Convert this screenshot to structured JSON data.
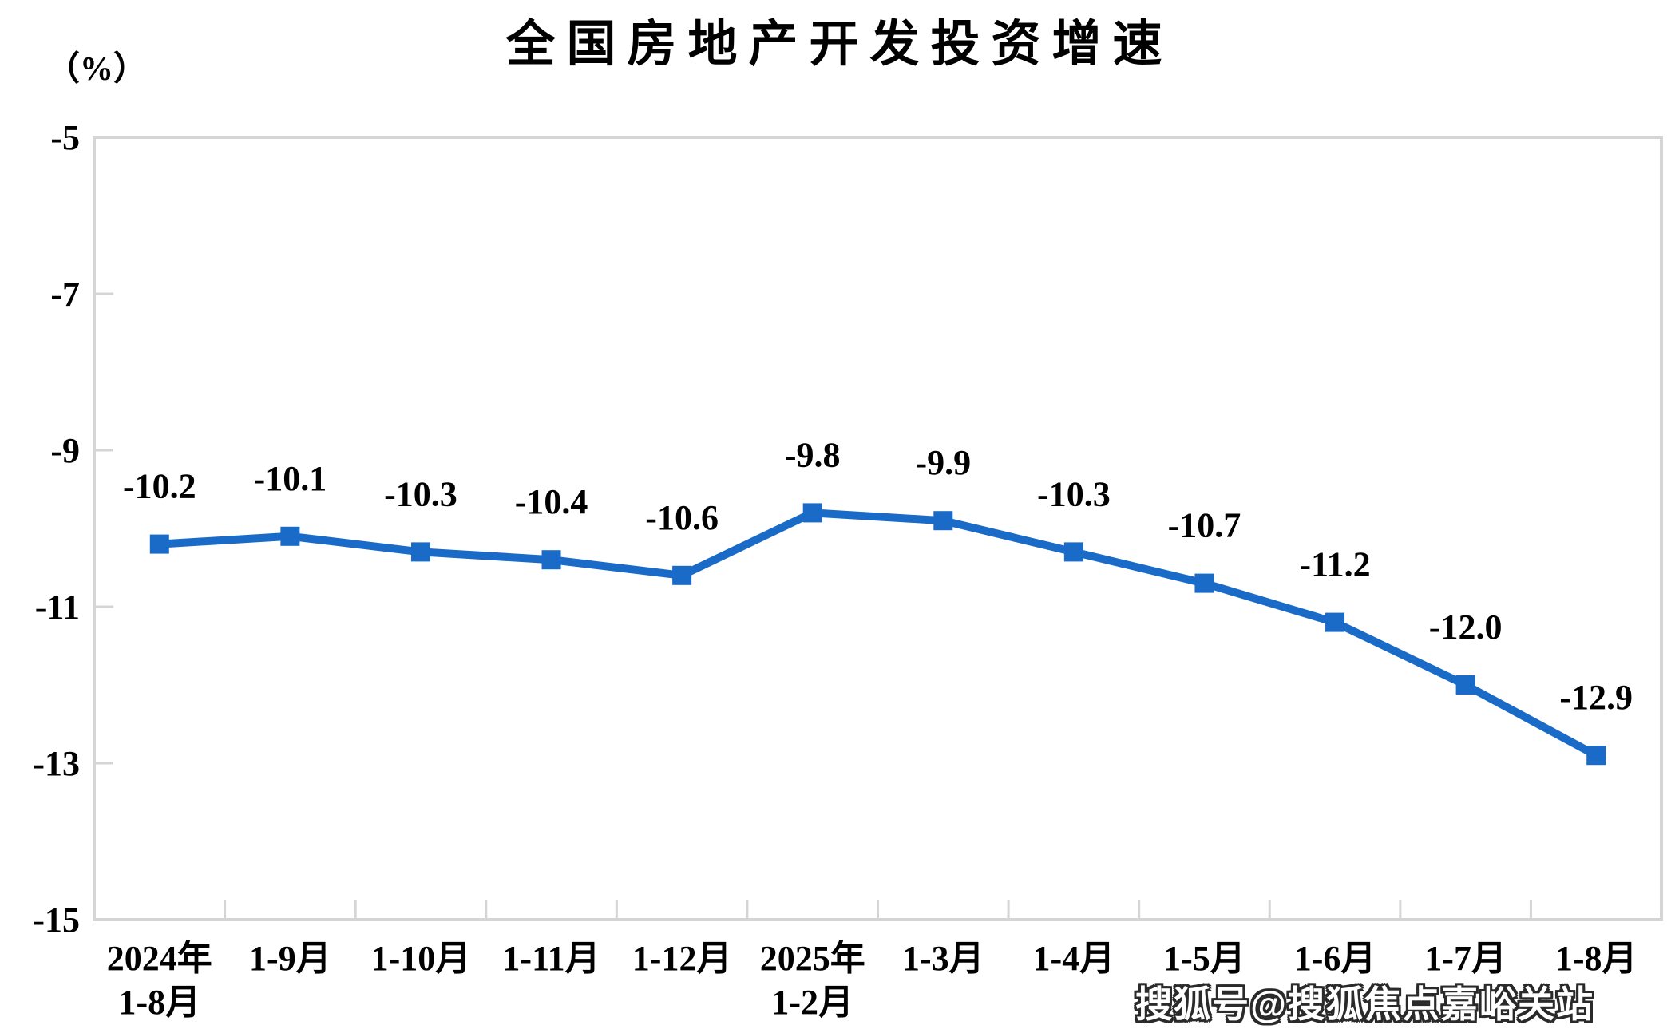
{
  "page": {
    "title": "全国房地产开发投资增速",
    "unit_label": "（%）",
    "watermark": "搜狐号@搜狐焦点嘉峪关站"
  },
  "chart_data": {
    "type": "line",
    "title": "全国房地产开发投资增速",
    "ylabel": "（%）",
    "xlabel": "",
    "categories": [
      [
        "2024年",
        "1-8月"
      ],
      [
        "1-9月"
      ],
      [
        "1-10月"
      ],
      [
        "1-11月"
      ],
      [
        "1-12月"
      ],
      [
        "2025年",
        "1-2月"
      ],
      [
        "1-3月"
      ],
      [
        "1-4月"
      ],
      [
        "1-5月"
      ],
      [
        "1-6月"
      ],
      [
        "1-7月"
      ],
      [
        "1-8月"
      ]
    ],
    "series": [
      {
        "name": "全国房地产开发投资增速",
        "values": [
          -10.2,
          -10.1,
          -10.3,
          -10.4,
          -10.6,
          -9.8,
          -9.9,
          -10.3,
          -10.7,
          -11.2,
          -12.0,
          -12.9
        ],
        "labels": [
          "-10.2",
          "-10.1",
          "-10.3",
          "-10.4",
          "-10.6",
          "-9.8",
          "-9.9",
          "-10.3",
          "-10.7",
          "-11.2",
          "-12.0",
          "-12.9"
        ]
      }
    ],
    "ylim": [
      -15,
      -5
    ],
    "yticks": [
      -5,
      -7,
      -9,
      -11,
      -13,
      -15
    ],
    "grid": false,
    "legend_position": "none",
    "marker": "square",
    "colors": {
      "line": "#1A6AC8",
      "axis": "#D5D5D5",
      "text": "#000000"
    }
  }
}
